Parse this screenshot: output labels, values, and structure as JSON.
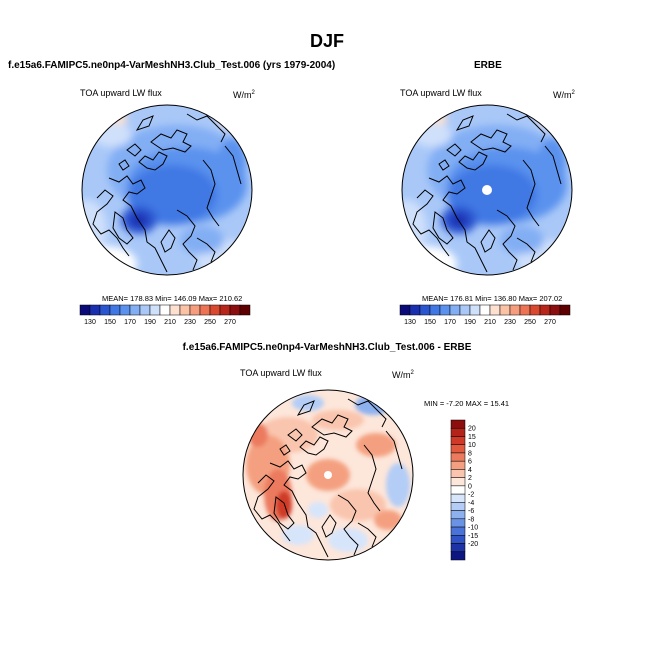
{
  "main_title": "DJF",
  "panels": [
    {
      "title": "f.e15a6.FAMIPC5.ne0np4-VarMeshNH3.Club_Test.006 (yrs 1979-2004)",
      "variable": "TOA upward LW flux",
      "units": "W/m",
      "units_exp": "2",
      "stats": "MEAN= 178.83  Min= 146.09  Max= 210.62"
    },
    {
      "title": "ERBE",
      "variable": "TOA upward LW flux",
      "units": "W/m",
      "units_exp": "2",
      "stats": "MEAN= 176.81  Min= 136.80  Max= 207.02"
    },
    {
      "title": "f.e15a6.FAMIPC5.ne0np4-VarMeshNH3.Club_Test.006 - ERBE",
      "variable": "TOA upward LW flux",
      "units": "W/m",
      "units_exp": "2",
      "stats": "MIN = -7.20 MAX =  15.41"
    }
  ],
  "colorbar_abs": {
    "labels": [
      "130",
      "150",
      "170",
      "190",
      "210",
      "230",
      "250",
      "270"
    ],
    "colors": [
      "#0a0a78",
      "#1a2fb0",
      "#2a55d0",
      "#3f78e4",
      "#5a92ee",
      "#82aef4",
      "#a9c8f8",
      "#cfe0fb",
      "#ffffff",
      "#fde0cf",
      "#fbc2a6",
      "#f59d7c",
      "#ec7354",
      "#d9492f",
      "#b8261a",
      "#8c0d0d",
      "#5e0000"
    ]
  },
  "colorbar_diff": {
    "labels": [
      "20",
      "15",
      "10",
      "8",
      "6",
      "4",
      "2",
      "0",
      "-2",
      "-4",
      "-6",
      "-8",
      "-10",
      "-15",
      "-20"
    ],
    "colors": [
      "#8c0d0d",
      "#b3231a",
      "#cf3a28",
      "#e15a3f",
      "#ec7a5e",
      "#f4a080",
      "#fac5ae",
      "#fde6da",
      "#ffffff",
      "#d7e5fb",
      "#b3cdf6",
      "#8db1ef",
      "#6a93e6",
      "#4a73da",
      "#2f52c4",
      "#1c32a6",
      "#0c1580"
    ]
  }
}
